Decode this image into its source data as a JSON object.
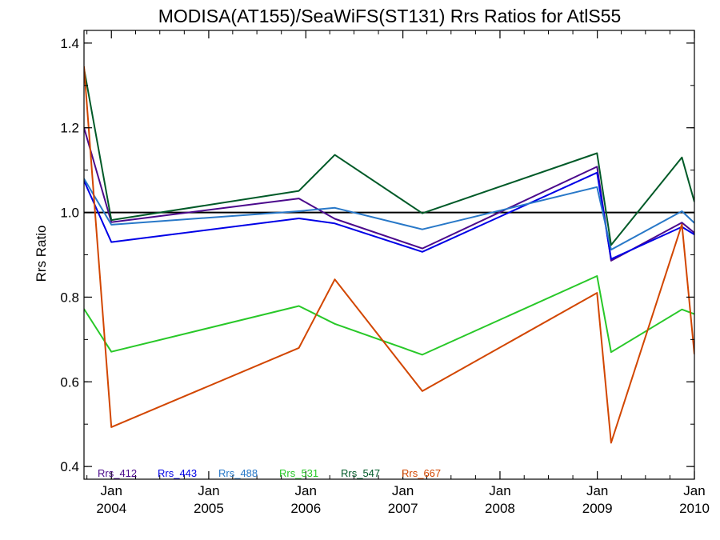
{
  "chart_data": {
    "type": "line",
    "title": "MODISA(AT155)/SeaWiFS(ST131)  Rrs Ratios for AtlS55",
    "xlabel": "",
    "ylabel": "Rrs Ratio",
    "ylim": [
      0.37,
      1.43
    ],
    "yticks": [
      0.4,
      0.6,
      0.8,
      1.0,
      1.2,
      1.4
    ],
    "ytick_labels": [
      "0.4",
      "0.6",
      "0.8",
      "1.0",
      "1.2",
      "1.4"
    ],
    "xlim": [
      "2003-09-20",
      "2010-01-01"
    ],
    "xticks": [
      {
        "date": "2004-01-01",
        "month": "Jan",
        "year": "2004"
      },
      {
        "date": "2005-01-01",
        "month": "Jan",
        "year": "2005"
      },
      {
        "date": "2006-01-01",
        "month": "Jan",
        "year": "2006"
      },
      {
        "date": "2007-01-01",
        "month": "Jan",
        "year": "2007"
      },
      {
        "date": "2008-01-01",
        "month": "Jan",
        "year": "2008"
      },
      {
        "date": "2009-01-01",
        "month": "Jan",
        "year": "2009"
      },
      {
        "date": "2010-01-01",
        "month": "Jan",
        "year": "2010"
      }
    ],
    "reference_line": 1.0,
    "x": [
      "2003-09-20",
      "2004-01-01",
      "2005-12-06",
      "2006-04-20",
      "2007-03-15",
      "2008-12-31",
      "2009-02-22",
      "2009-11-15",
      "2010-01-01"
    ],
    "series": [
      {
        "name": "Rrs_412",
        "color": "#4b0a8c",
        "values": [
          1.2,
          0.977,
          1.033,
          0.985,
          0.915,
          1.108,
          0.886,
          0.976,
          0.952
        ]
      },
      {
        "name": "Rrs_443",
        "color": "#0000e6",
        "values": [
          1.075,
          0.93,
          0.986,
          0.974,
          0.907,
          1.094,
          0.89,
          0.966,
          0.948
        ]
      },
      {
        "name": "Rrs_488",
        "color": "#2878c8",
        "values": [
          1.08,
          0.971,
          1.003,
          1.011,
          0.96,
          1.06,
          0.912,
          1.003,
          0.975
        ]
      },
      {
        "name": "Rrs_531",
        "color": "#28c828",
        "values": [
          0.772,
          0.671,
          0.779,
          0.737,
          0.664,
          0.85,
          0.67,
          0.771,
          0.76
        ]
      },
      {
        "name": "Rrs_547",
        "color": "#005a28",
        "values": [
          1.34,
          0.982,
          1.051,
          1.136,
          0.998,
          1.14,
          0.923,
          1.13,
          1.025
        ]
      },
      {
        "name": "Rrs_667",
        "color": "#d24600",
        "values": [
          1.345,
          0.493,
          0.68,
          0.842,
          0.578,
          0.81,
          0.456,
          0.972,
          0.665
        ]
      }
    ],
    "legend_placement": "bottom-left inside plot",
    "grid": false
  }
}
